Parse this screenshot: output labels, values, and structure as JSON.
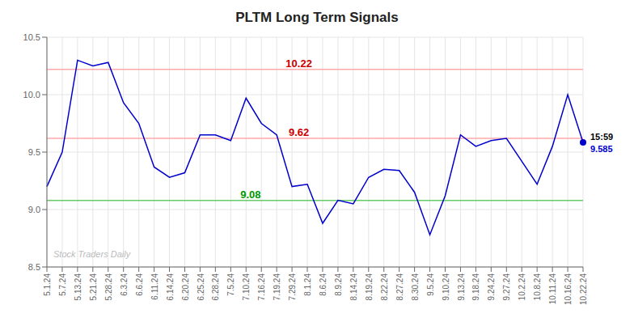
{
  "chart_data": {
    "type": "line",
    "title": "PLTM Long Term Signals",
    "categories": [
      "5.1.24",
      "5.7.24",
      "5.13.24",
      "5.21.24",
      "5.28.24",
      "6.3.24",
      "6.6.24",
      "6.11.24",
      "6.14.24",
      "6.20.24",
      "6.25.24",
      "6.28.24",
      "7.5.24",
      "7.10.24",
      "7.16.24",
      "7.19.24",
      "7.29.24",
      "8.1.24",
      "8.6.24",
      "8.9.24",
      "8.14.24",
      "8.19.24",
      "8.22.24",
      "8.27.24",
      "8.30.24",
      "9.5.24",
      "9.10.24",
      "9.13.24",
      "9.18.24",
      "9.24.24",
      "9.27.24",
      "10.2.24",
      "10.8.24",
      "10.11.24",
      "10.16.24",
      "10.22.24"
    ],
    "series": [
      {
        "name": "PLTM",
        "color": "#0000cc",
        "values": [
          9.2,
          9.5,
          10.3,
          10.25,
          10.28,
          9.93,
          9.75,
          9.37,
          9.28,
          9.32,
          9.65,
          9.65,
          9.6,
          9.97,
          9.75,
          9.65,
          9.2,
          9.22,
          8.88,
          9.08,
          9.05,
          9.28,
          9.35,
          9.34,
          9.15,
          8.78,
          9.12,
          9.65,
          9.55,
          9.6,
          9.62,
          9.42,
          9.22,
          9.55,
          10.0,
          9.585
        ]
      }
    ],
    "hlines": [
      {
        "value": 10.22,
        "label": "10.22",
        "color": "#ffaaaa",
        "label_color": "#cc0000"
      },
      {
        "value": 9.62,
        "label": "9.62",
        "color": "#ffaaaa",
        "label_color": "#cc0000"
      },
      {
        "value": 9.08,
        "label": "9.08",
        "color": "#66cc66",
        "label_color": "#009900"
      }
    ],
    "annotations": [
      {
        "text": "15:59",
        "x": "10.22.24",
        "y": 9.585,
        "color": "#000000"
      },
      {
        "text": "9.585",
        "x": "10.22.24",
        "y": 9.585,
        "color": "#0000cc"
      },
      {
        "text": "Stock Traders Daily",
        "color": "#bbbbbb"
      }
    ],
    "ylim": [
      8.5,
      10.5
    ],
    "yticks": [
      8.5,
      {
        "value": 9.0,
        "label": "9.0"
      },
      9.5,
      {
        "value": 10.0,
        "label": "10.0"
      },
      10.5
    ],
    "grid": true
  }
}
